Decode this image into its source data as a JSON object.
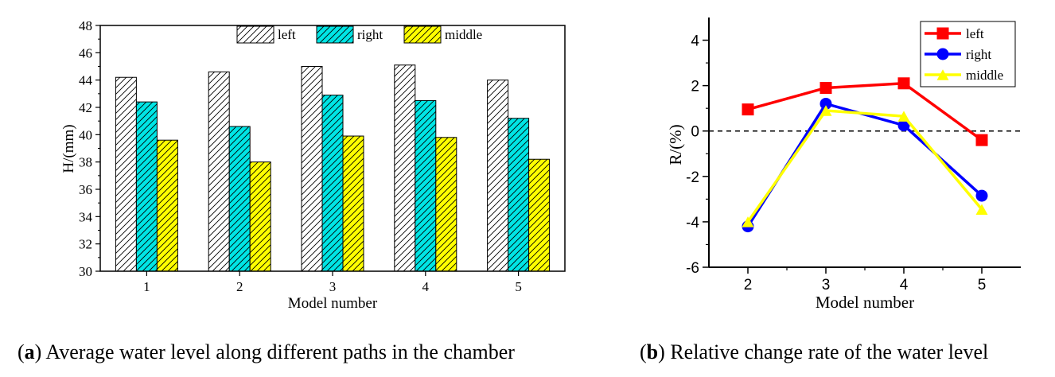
{
  "chart_data": [
    {
      "type": "bar",
      "caption": {
        "letter": "a",
        "text": "Average water level along different paths in the chamber"
      },
      "categories": [
        "1",
        "2",
        "3",
        "4",
        "5"
      ],
      "series": [
        {
          "name": "left",
          "values": [
            44.2,
            44.6,
            45.0,
            45.1,
            44.0
          ],
          "color": "#ffffff",
          "pattern": "hatch"
        },
        {
          "name": "right",
          "values": [
            42.4,
            40.6,
            42.9,
            42.5,
            41.2
          ],
          "color": "#00e5e5",
          "pattern": "hatch"
        },
        {
          "name": "middle",
          "values": [
            39.6,
            38.0,
            39.9,
            39.8,
            38.2
          ],
          "color": "#ffff00",
          "pattern": "hatch"
        }
      ],
      "xlabel": "Model number",
      "ylabel": "H/(mm)",
      "ylim": [
        30,
        48
      ],
      "yticks": [
        "30",
        "32",
        "34",
        "36",
        "38",
        "40",
        "42",
        "44",
        "46",
        "48"
      ],
      "legend": "top-right",
      "grid": false
    },
    {
      "type": "line",
      "caption": {
        "letter": "b",
        "text": "Relative change rate of the water level"
      },
      "categories": [
        "2",
        "3",
        "4",
        "5"
      ],
      "series": [
        {
          "name": "left",
          "values": [
            0.95,
            1.9,
            2.1,
            -0.4
          ],
          "color": "#ff0000",
          "marker": "square"
        },
        {
          "name": "right",
          "values": [
            -4.2,
            1.2,
            0.25,
            -2.85
          ],
          "color": "#0000ff",
          "marker": "circle"
        },
        {
          "name": "middle",
          "values": [
            -4.0,
            0.9,
            0.65,
            -3.45
          ],
          "color": "#ffff00",
          "marker": "triangle"
        }
      ],
      "xlabel": "Model number",
      "ylabel": "R/(%)",
      "ylim": [
        -6,
        5
      ],
      "yticks": [
        "-6",
        "-4",
        "-2",
        "0",
        "2",
        "4"
      ],
      "reference_line": {
        "y": 0,
        "style": "dashed"
      },
      "legend": "top-right",
      "grid": false
    }
  ]
}
